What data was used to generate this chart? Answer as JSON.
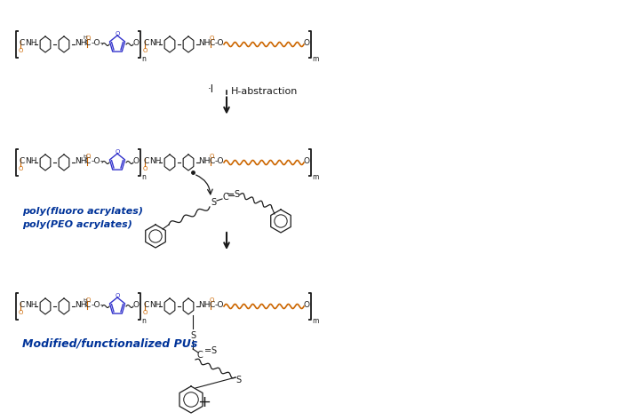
{
  "bg_color": "#ffffff",
  "fig_width": 7.0,
  "fig_height": 4.73,
  "dpi": 100,
  "colors": {
    "black": "#1a1a1a",
    "blue": "#3333cc",
    "orange": "#cc6600",
    "dark_blue": "#003399"
  },
  "label_h_abstraction": "H-abstraction",
  "label_poly_fluoro": "poly(fluoro acrylates)",
  "label_poly_peo": "poly(PEO acrylates)",
  "label_modified": "Modified/functionalized PUs"
}
